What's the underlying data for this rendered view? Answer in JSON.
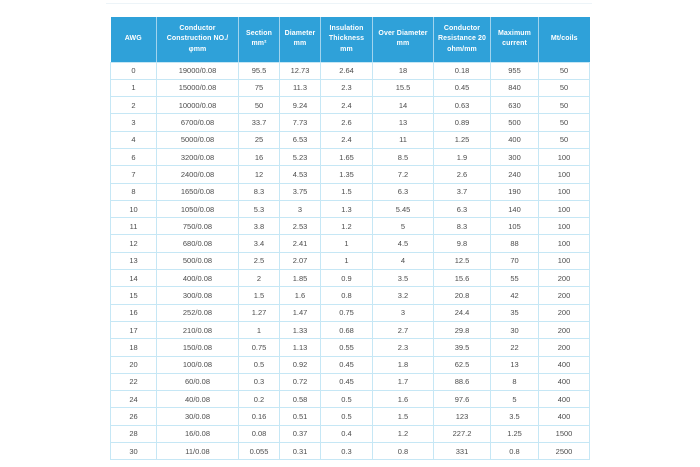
{
  "styles": {
    "page_bg": "#ffffff",
    "header_bg": "#2fa1d9",
    "header_text": "#ffffff",
    "header_divider": "rgba(255,255,255,0.55)",
    "grid_line": "#c6e7f5",
    "body_text": "#4c4c4c"
  },
  "chart_data": {
    "type": "table",
    "columns": [
      "AWG",
      "Conductor Construction NO./φmm",
      "Section mm²",
      "Diameter mm",
      "Insulation Thickness mm",
      "Over Diameter mm",
      "Conductor Resistance 20 ohm/mm",
      "Maximum current",
      "Mt/coils"
    ],
    "rows": [
      [
        "0",
        "19000/0.08",
        "95.5",
        "12.73",
        "2.64",
        "18",
        "0.18",
        "955",
        "50"
      ],
      [
        "1",
        "15000/0.08",
        "75",
        "11.3",
        "2.3",
        "15.5",
        "0.45",
        "840",
        "50"
      ],
      [
        "2",
        "10000/0.08",
        "50",
        "9.24",
        "2.4",
        "14",
        "0.63",
        "630",
        "50"
      ],
      [
        "3",
        "6700/0.08",
        "33.7",
        "7.73",
        "2.6",
        "13",
        "0.89",
        "500",
        "50"
      ],
      [
        "4",
        "5000/0.08",
        "25",
        "6.53",
        "2.4",
        "11",
        "1.25",
        "400",
        "50"
      ],
      [
        "6",
        "3200/0.08",
        "16",
        "5.23",
        "1.65",
        "8.5",
        "1.9",
        "300",
        "100"
      ],
      [
        "7",
        "2400/0.08",
        "12",
        "4.53",
        "1.35",
        "7.2",
        "2.6",
        "240",
        "100"
      ],
      [
        "8",
        "1650/0.08",
        "8.3",
        "3.75",
        "1.5",
        "6.3",
        "3.7",
        "190",
        "100"
      ],
      [
        "10",
        "1050/0.08",
        "5.3",
        "3",
        "1.3",
        "5.45",
        "6.3",
        "140",
        "100"
      ],
      [
        "11",
        "750/0.08",
        "3.8",
        "2.53",
        "1.2",
        "5",
        "8.3",
        "105",
        "100"
      ],
      [
        "12",
        "680/0.08",
        "3.4",
        "2.41",
        "1",
        "4.5",
        "9.8",
        "88",
        "100"
      ],
      [
        "13",
        "500/0.08",
        "2.5",
        "2.07",
        "1",
        "4",
        "12.5",
        "70",
        "100"
      ],
      [
        "14",
        "400/0.08",
        "2",
        "1.85",
        "0.9",
        "3.5",
        "15.6",
        "55",
        "200"
      ],
      [
        "15",
        "300/0.08",
        "1.5",
        "1.6",
        "0.8",
        "3.2",
        "20.8",
        "42",
        "200"
      ],
      [
        "16",
        "252/0.08",
        "1.27",
        "1.47",
        "0.75",
        "3",
        "24.4",
        "35",
        "200"
      ],
      [
        "17",
        "210/0.08",
        "1",
        "1.33",
        "0.68",
        "2.7",
        "29.8",
        "30",
        "200"
      ],
      [
        "18",
        "150/0.08",
        "0.75",
        "1.13",
        "0.55",
        "2.3",
        "39.5",
        "22",
        "200"
      ],
      [
        "20",
        "100/0.08",
        "0.5",
        "0.92",
        "0.45",
        "1.8",
        "62.5",
        "13",
        "400"
      ],
      [
        "22",
        "60/0.08",
        "0.3",
        "0.72",
        "0.45",
        "1.7",
        "88.6",
        "8",
        "400"
      ],
      [
        "24",
        "40/0.08",
        "0.2",
        "0.58",
        "0.5",
        "1.6",
        "97.6",
        "5",
        "400"
      ],
      [
        "26",
        "30/0.08",
        "0.16",
        "0.51",
        "0.5",
        "1.5",
        "123",
        "3.5",
        "400"
      ],
      [
        "28",
        "16/0.08",
        "0.08",
        "0.37",
        "0.4",
        "1.2",
        "227.2",
        "1.25",
        "1500"
      ],
      [
        "30",
        "11/0.08",
        "0.055",
        "0.31",
        "0.3",
        "0.8",
        "331",
        "0.8",
        "2500"
      ]
    ]
  }
}
